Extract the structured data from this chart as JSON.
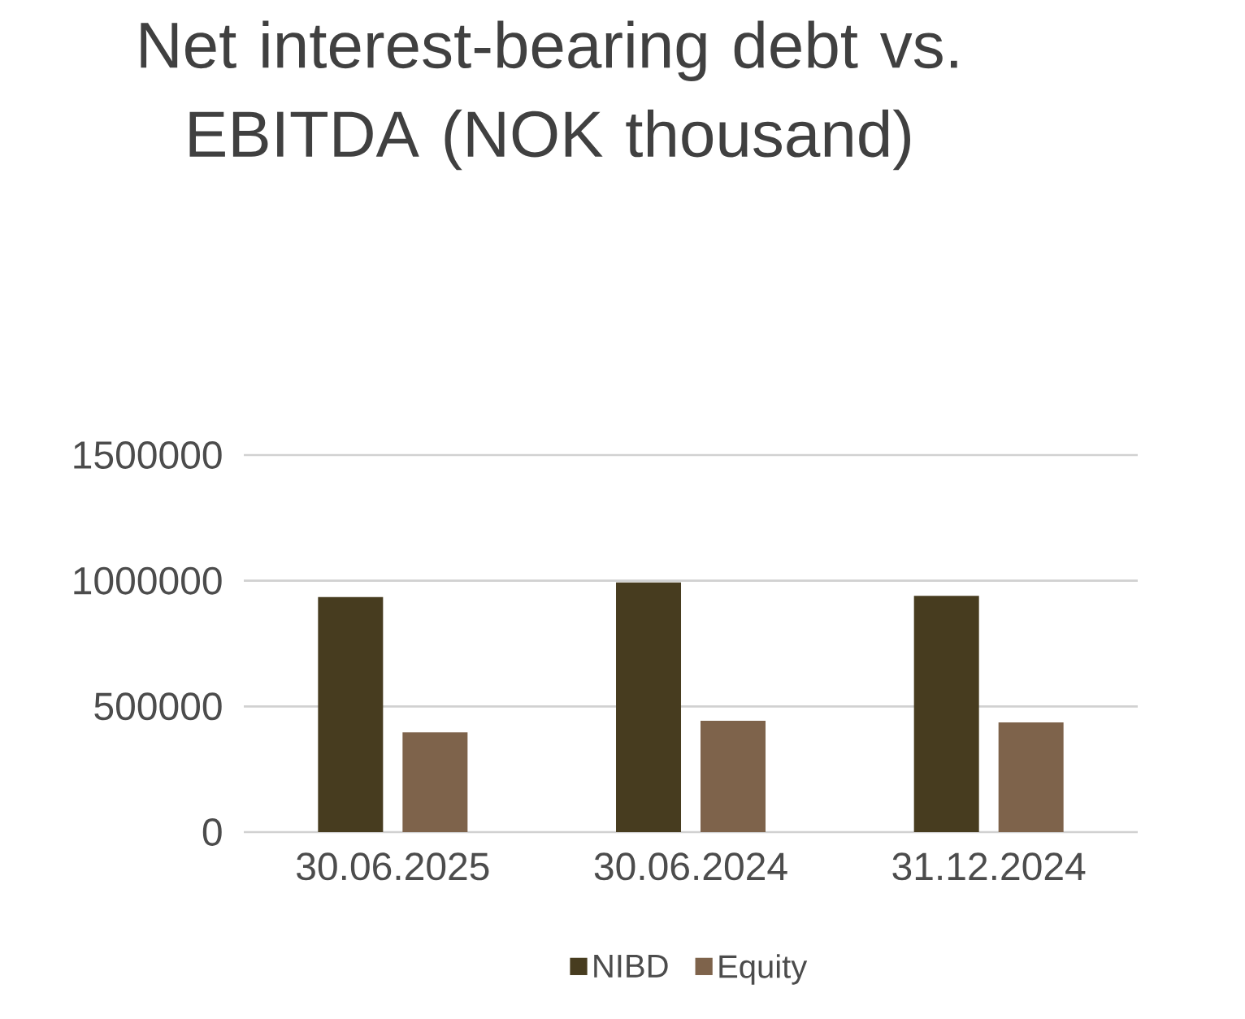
{
  "chart_data": {
    "type": "bar",
    "title": "Net interest-bearing debt vs. EBITDA (NOK thousand)",
    "categories": [
      "30.06.2025",
      "30.06.2024",
      "31.12.2024"
    ],
    "series": [
      {
        "name": "NIBD",
        "color": "#473c1f",
        "values": [
          935000,
          993000,
          940000
        ]
      },
      {
        "name": "Equity",
        "color": "#7e634b",
        "values": [
          397000,
          443000,
          436000
        ]
      }
    ],
    "ylim": [
      0,
      1500000
    ],
    "yticks": [
      0,
      500000,
      1000000,
      1500000
    ],
    "grid": "y",
    "legend": "bottom"
  }
}
